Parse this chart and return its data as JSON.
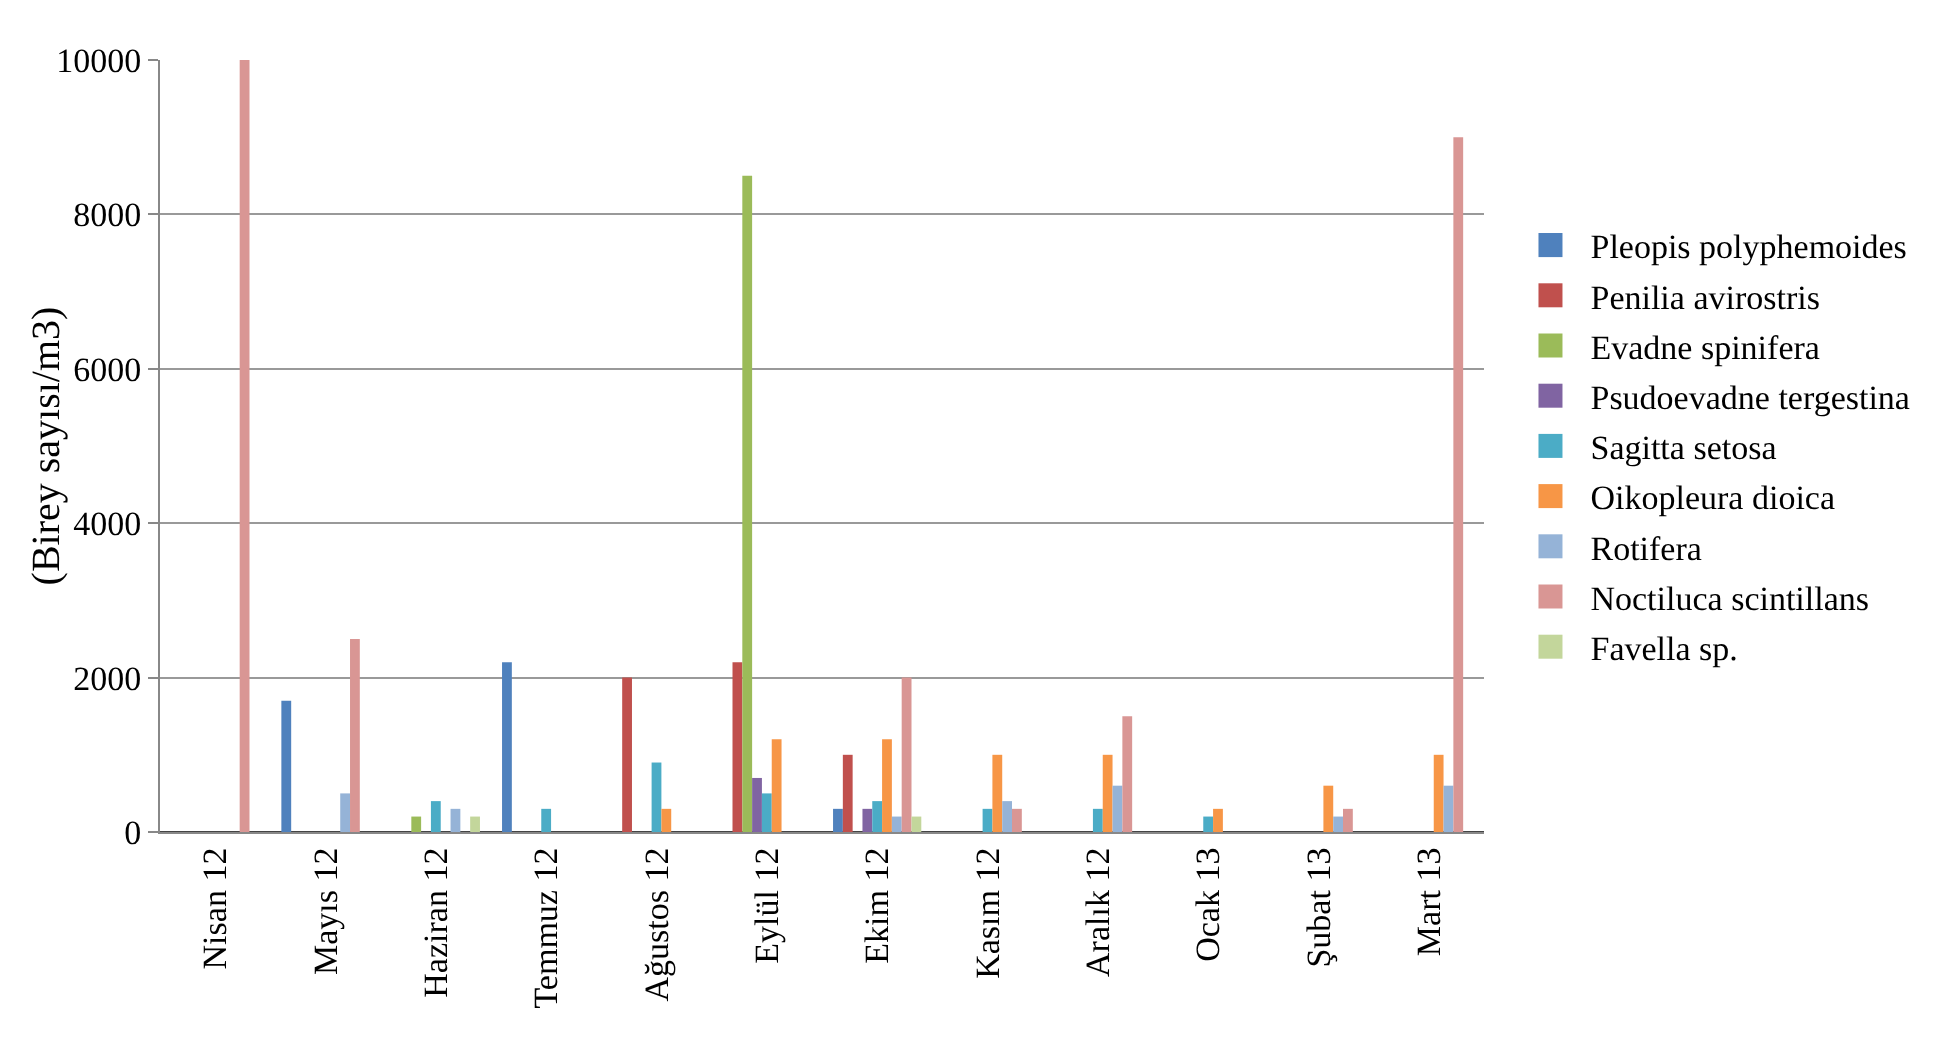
{
  "chart_data": {
    "type": "bar",
    "ylabel": "(Birey sayısı/m3)",
    "categories": [
      "Nisan 12",
      "Mayıs 12",
      "Haziran 12",
      "Temmuz 12",
      "Ağustos 12",
      "Eylül 12",
      "Ekim 12",
      "Kasım 12",
      "Aralık 12",
      "Ocak 13",
      "Şubat 13",
      "Mart 13"
    ],
    "series": [
      {
        "name": "Pleopis polyphemoides",
        "color": "#4f81bd",
        "values": [
          0,
          1700,
          0,
          2200,
          0,
          0,
          300,
          0,
          0,
          0,
          0,
          0
        ]
      },
      {
        "name": "Penilia avirostris",
        "color": "#c0504d",
        "values": [
          0,
          0,
          0,
          0,
          2000,
          2200,
          1000,
          0,
          0,
          0,
          0,
          0
        ]
      },
      {
        "name": "Evadne spinifera",
        "color": "#9bbb59",
        "values": [
          0,
          0,
          200,
          0,
          0,
          8500,
          0,
          0,
          0,
          0,
          0,
          0
        ]
      },
      {
        "name": "Psudoevadne tergestina",
        "color": "#8064a2",
        "values": [
          0,
          0,
          0,
          0,
          0,
          700,
          300,
          0,
          0,
          0,
          0,
          0
        ]
      },
      {
        "name": "Sagitta setosa",
        "color": "#4bacc6",
        "values": [
          0,
          0,
          400,
          300,
          900,
          500,
          400,
          300,
          300,
          200,
          0,
          0
        ]
      },
      {
        "name": "Oikopleura dioica",
        "color": "#f79646",
        "values": [
          0,
          0,
          0,
          0,
          300,
          1200,
          1200,
          1000,
          1000,
          300,
          600,
          1000
        ]
      },
      {
        "name": "Rotifera",
        "color": "#95b3d7",
        "values": [
          0,
          500,
          300,
          0,
          0,
          0,
          200,
          400,
          600,
          0,
          200,
          600
        ]
      },
      {
        "name": "Noctiluca scintillans",
        "color": "#d99694",
        "values": [
          10000,
          2500,
          0,
          0,
          0,
          0,
          2000,
          300,
          1500,
          0,
          300,
          9000
        ]
      },
      {
        "name": "Favella sp.",
        "color": "#c3d69b",
        "values": [
          0,
          0,
          200,
          0,
          0,
          0,
          200,
          0,
          0,
          0,
          0,
          0
        ]
      }
    ],
    "ylim": [
      0,
      10000
    ],
    "yticks": [
      0,
      2000,
      4000,
      6000,
      8000,
      10000
    ],
    "grid": "y",
    "legend": "right"
  }
}
